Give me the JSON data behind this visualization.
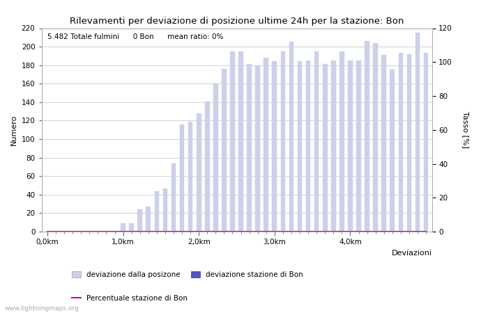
{
  "title": "Rilevamenti per deviazione di posizione ultime 24h per la stazione: Bon",
  "annotation": "5.482 Totale fulmini      0 Bon      mean ratio: 0%",
  "ylabel_left": "Numero",
  "ylabel_right": "Tasso [%]",
  "xlabel": "Deviazioni",
  "ylim_left": [
    0,
    220
  ],
  "ylim_right": [
    0,
    120
  ],
  "xtick_labels": [
    "0,0km",
    "1,0km",
    "2,0km",
    "3,0km",
    "4,0km"
  ],
  "xtick_positions": [
    0,
    9,
    18,
    27,
    36
  ],
  "yticks_left": [
    0,
    20,
    40,
    60,
    80,
    100,
    120,
    140,
    160,
    180,
    200,
    220
  ],
  "yticks_right": [
    0,
    20,
    40,
    60,
    80,
    100,
    120
  ],
  "bar_values": [
    0,
    0,
    0,
    0,
    0,
    0,
    0,
    0,
    1,
    9,
    9,
    24,
    27,
    44,
    47,
    74,
    116,
    119,
    128,
    141,
    160,
    176,
    195,
    195,
    181,
    180,
    188,
    184,
    195,
    205,
    184,
    185,
    195,
    181,
    185,
    195,
    185,
    185,
    206,
    204,
    191,
    175,
    193,
    192,
    215,
    193
  ],
  "bar_color_light": "#cdd0ea",
  "bar_color_dark": "#5555bb",
  "line_color": "#cc00cc",
  "line_values": [
    0,
    0,
    0,
    0,
    0,
    0,
    0,
    0,
    0,
    0,
    0,
    0,
    0,
    0,
    0,
    0,
    0,
    0,
    0,
    0,
    0,
    0,
    0,
    0,
    0,
    0,
    0,
    0,
    0,
    0,
    0,
    0,
    0,
    0,
    0,
    0,
    0,
    0,
    0,
    0,
    0,
    0,
    0,
    0,
    0,
    0
  ],
  "watermark": "www.lightningmaps.org",
  "legend_light": "deviazione dalla posizone",
  "legend_dark": "deviazione stazione di Bon",
  "legend_line": "Percentuale stazione di Bon",
  "bg_color": "#ffffff",
  "grid_color": "#cccccc",
  "n_bars": 46,
  "bar_width": 0.55
}
